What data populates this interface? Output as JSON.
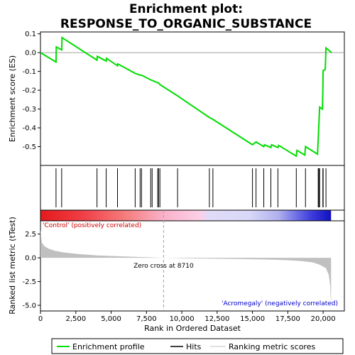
{
  "chart_data": {
    "type": "line",
    "title_lines": [
      "Enrichment plot:",
      "RESPONSE_TO_ORGANIC_SUBSTANCE"
    ],
    "xlabel": "Rank in Ordered Dataset",
    "ylabel_top": "Enrichment score (ES)",
    "ylabel_bottom": "Ranked list metric (tTest)",
    "xlim": [
      0,
      21500
    ],
    "x_ticks": [
      0,
      2500,
      5000,
      7500,
      10000,
      12500,
      15000,
      17500,
      20000
    ],
    "x_tick_labels": [
      "0",
      "2,500",
      "5,000",
      "7,500",
      "10,000",
      "12,500",
      "15,000",
      "17,500",
      "20,000"
    ],
    "es_ylim": [
      -0.6,
      0.11
    ],
    "es_ticks": [
      0.1,
      0.0,
      -0.1,
      -0.2,
      -0.3,
      -0.4,
      -0.5
    ],
    "es_tick_labels": [
      "0.1",
      "0.0",
      "-0.1",
      "-0.2",
      "-0.3",
      "-0.4",
      "-0.5"
    ],
    "metric_ylim": [
      -5.6,
      3.9
    ],
    "metric_ticks": [
      2.5,
      0.0,
      -2.5,
      -5.0
    ],
    "metric_tick_labels": [
      "2.5",
      "0.0",
      "-2.5",
      "-5.0"
    ],
    "enrichment_profile": [
      [
        0,
        0.0
      ],
      [
        1100,
        -0.05
      ],
      [
        1120,
        0.03
      ],
      [
        1500,
        0.015
      ],
      [
        1520,
        0.08
      ],
      [
        4000,
        -0.04
      ],
      [
        4020,
        -0.02
      ],
      [
        4650,
        -0.045
      ],
      [
        4670,
        -0.03
      ],
      [
        5450,
        -0.07
      ],
      [
        5470,
        -0.06
      ],
      [
        6700,
        -0.11
      ],
      [
        7050,
        -0.12
      ],
      [
        7150,
        -0.12
      ],
      [
        7800,
        -0.145
      ],
      [
        7900,
        -0.148
      ],
      [
        8300,
        -0.16
      ],
      [
        8350,
        -0.16
      ],
      [
        8450,
        -0.17
      ],
      [
        9700,
        -0.23
      ],
      [
        11950,
        -0.345
      ],
      [
        12200,
        -0.355
      ],
      [
        15000,
        -0.49
      ],
      [
        15250,
        -0.475
      ],
      [
        15800,
        -0.5
      ],
      [
        15850,
        -0.49
      ],
      [
        16300,
        -0.505
      ],
      [
        16350,
        -0.49
      ],
      [
        16800,
        -0.505
      ],
      [
        16850,
        -0.493
      ],
      [
        18100,
        -0.55
      ],
      [
        18150,
        -0.52
      ],
      [
        18700,
        -0.545
      ],
      [
        18750,
        -0.5
      ],
      [
        19600,
        -0.54
      ],
      [
        19650,
        -0.46
      ],
      [
        19700,
        -0.375
      ],
      [
        19750,
        -0.29
      ],
      [
        19950,
        -0.3
      ],
      [
        19980,
        -0.2
      ],
      [
        20000,
        -0.095
      ],
      [
        20150,
        -0.09
      ],
      [
        20200,
        0.025
      ],
      [
        20600,
        0.0
      ]
    ],
    "hits": [
      1100,
      1500,
      4000,
      4650,
      5450,
      6700,
      7050,
      7150,
      7800,
      7900,
      8300,
      8350,
      8450,
      9700,
      11950,
      12200,
      15000,
      15250,
      15800,
      16300,
      16800,
      18100,
      18750,
      19650,
      19700,
      19750,
      19980,
      20000,
      20200
    ],
    "metric_curve": [
      [
        0,
        3.0
      ],
      [
        100,
        1.6
      ],
      [
        300,
        1.2
      ],
      [
        600,
        0.95
      ],
      [
        1000,
        0.75
      ],
      [
        1500,
        0.6
      ],
      [
        2500,
        0.42
      ],
      [
        4000,
        0.26
      ],
      [
        6000,
        0.14
      ],
      [
        8000,
        0.04
      ],
      [
        8710,
        0.0
      ],
      [
        10000,
        -0.04
      ],
      [
        12000,
        -0.08
      ],
      [
        14000,
        -0.12
      ],
      [
        16000,
        -0.18
      ],
      [
        17500,
        -0.25
      ],
      [
        18500,
        -0.35
      ],
      [
        19300,
        -0.5
      ],
      [
        19800,
        -0.75
      ],
      [
        20200,
        -1.1
      ],
      [
        20400,
        -1.8
      ],
      [
        20500,
        -3.0
      ],
      [
        20560,
        -5.3
      ]
    ],
    "zero_cross": 8710,
    "zero_cross_label": "Zero cross at 8710",
    "positive_label": "'Control' (positively correlated)",
    "negative_label": "'Acromegaly' (negatively correlated)",
    "legend": [
      "Enrichment profile",
      "Hits",
      "Ranking metric scores"
    ],
    "colors": {
      "profile": "#00dd00",
      "hits": "#000000",
      "metric": "#c0c0c0",
      "positive_label": "#cc0000",
      "negative_label": "#0000cc",
      "zero_line": "#a0a0a0",
      "panel_border": "#000000"
    },
    "heatmap_stops": [
      [
        0,
        "#e41a1c"
      ],
      [
        0.15,
        "#f04048"
      ],
      [
        0.3,
        "#f58080"
      ],
      [
        0.42,
        "#f9b0c8"
      ],
      [
        0.55,
        "#fcd0e8"
      ],
      [
        0.58,
        "#e0dcf8"
      ],
      [
        0.72,
        "#d8d8f8"
      ],
      [
        0.82,
        "#b0b0ee"
      ],
      [
        0.87,
        "#7a7ae8"
      ],
      [
        0.93,
        "#3f3fdc"
      ],
      [
        1,
        "#1010c0"
      ]
    ]
  }
}
